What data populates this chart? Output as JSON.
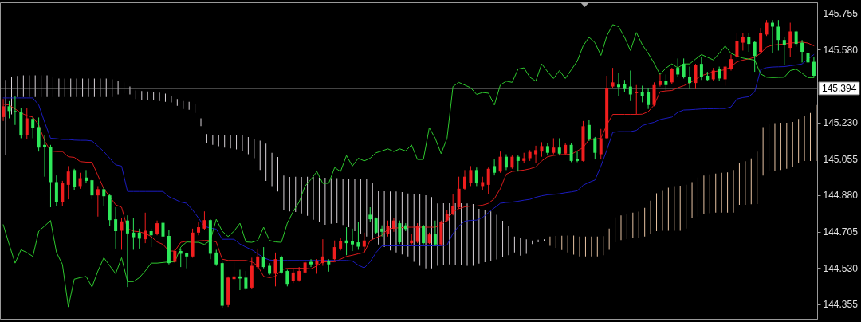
{
  "chart_data": {
    "type": "candlestick",
    "categories": [
      null,
      null,
      null,
      null,
      null,
      null,
      null,
      null,
      null,
      null,
      null,
      null,
      null,
      null,
      null,
      null,
      null,
      null,
      null,
      null,
      null,
      null,
      null,
      null,
      null,
      null,
      null,
      null,
      null,
      null,
      null,
      null,
      null,
      null,
      null,
      null,
      null,
      null,
      null,
      null,
      null,
      null,
      null,
      null,
      null,
      null,
      null,
      null,
      null,
      null,
      null,
      null,
      null,
      null,
      null,
      null,
      null,
      null,
      null,
      null,
      null,
      null,
      null,
      null,
      null,
      null,
      null,
      null,
      null,
      null,
      null,
      null,
      null,
      null,
      null,
      null,
      null,
      null,
      null,
      null,
      null,
      null,
      null,
      null,
      null,
      null,
      null,
      null,
      null,
      null,
      null,
      null,
      null,
      null,
      null,
      null,
      null,
      null,
      null,
      null,
      null,
      null,
      null,
      null,
      null,
      null,
      null,
      null,
      null,
      null,
      null,
      null,
      null,
      null,
      null,
      null,
      null,
      null,
      null,
      null,
      null,
      null,
      null,
      null,
      null,
      null,
      null,
      null,
      null,
      null,
      null,
      null,
      null,
      null,
      null,
      null,
      null,
      null
    ],
    "ohlc": [
      [
        145.256,
        145.343,
        145.237,
        145.308
      ],
      [
        145.308,
        145.333,
        145.25,
        145.285
      ],
      [
        145.285,
        145.359,
        145.218,
        145.279
      ],
      [
        145.282,
        145.301,
        145.154,
        145.167
      ],
      [
        145.167,
        145.301,
        145.148,
        145.25
      ],
      [
        145.247,
        145.256,
        145.154,
        145.205
      ],
      [
        145.208,
        145.254,
        145.09,
        145.109
      ],
      [
        145.122,
        145.167,
        144.969,
        145.113
      ],
      [
        145.113,
        145.122,
        144.822,
        144.943
      ],
      [
        144.943,
        144.975,
        144.828,
        144.847
      ],
      [
        144.847,
        144.949,
        144.828,
        144.937
      ],
      [
        144.93,
        145.02,
        144.86,
        144.994
      ],
      [
        145.001,
        145.007,
        144.905,
        144.918
      ],
      [
        144.924,
        144.988,
        144.911,
        144.962
      ],
      [
        144.965,
        145.001,
        144.937,
        144.949
      ],
      [
        144.952,
        144.956,
        144.86,
        144.879
      ],
      [
        144.879,
        144.924,
        144.777,
        144.909
      ],
      [
        144.909,
        144.918,
        144.828,
        144.875
      ],
      [
        144.879,
        144.886,
        144.732,
        144.76
      ],
      [
        144.764,
        144.822,
        144.623,
        144.707
      ],
      [
        144.709,
        144.77,
        144.617,
        144.754
      ],
      [
        144.758,
        144.783,
        144.438,
        144.696
      ],
      [
        144.7,
        144.77,
        144.617,
        144.678
      ],
      [
        144.7,
        144.719,
        144.623,
        144.671
      ],
      [
        144.668,
        144.796,
        144.649,
        144.709
      ],
      [
        144.707,
        144.719,
        144.63,
        144.687
      ],
      [
        144.694,
        144.758,
        144.687,
        144.745
      ],
      [
        144.747,
        144.758,
        144.668,
        144.681
      ],
      [
        144.684,
        144.713,
        144.547,
        144.553
      ],
      [
        144.559,
        144.623,
        144.553,
        144.611
      ],
      [
        144.611,
        144.623,
        144.534,
        144.598
      ],
      [
        144.6,
        144.604,
        144.528,
        144.585
      ],
      [
        144.585,
        144.719,
        144.579,
        144.7
      ],
      [
        144.7,
        144.751,
        144.687,
        144.726
      ],
      [
        144.719,
        144.802,
        144.713,
        144.76
      ],
      [
        144.76,
        144.764,
        144.572,
        144.598
      ],
      [
        144.604,
        144.617,
        144.54,
        144.547
      ],
      [
        144.553,
        144.559,
        144.336,
        144.348
      ],
      [
        144.351,
        144.489,
        144.342,
        144.483
      ],
      [
        144.476,
        144.559,
        144.464,
        144.489
      ],
      [
        144.489,
        144.521,
        144.423,
        144.479
      ],
      [
        144.483,
        144.515,
        144.423,
        144.432
      ],
      [
        144.435,
        144.579,
        144.428,
        144.54
      ],
      [
        144.534,
        144.623,
        144.528,
        144.585
      ],
      [
        144.581,
        144.63,
        144.528,
        144.534
      ],
      [
        144.54,
        144.553,
        144.496,
        144.502
      ],
      [
        144.502,
        144.604,
        144.441,
        144.572
      ],
      [
        144.581,
        144.589,
        144.502,
        144.508
      ],
      [
        144.515,
        144.521,
        144.441,
        144.453
      ],
      [
        144.466,
        144.525,
        144.457,
        144.508
      ],
      [
        144.47,
        144.534,
        144.464,
        144.515
      ],
      [
        144.508,
        144.563,
        144.502,
        144.556
      ],
      [
        144.559,
        144.572,
        144.534,
        144.547
      ],
      [
        144.547,
        144.572,
        144.502,
        144.562
      ],
      [
        144.553,
        144.668,
        144.54,
        144.585
      ],
      [
        144.563,
        144.572,
        144.512,
        144.547
      ],
      [
        144.572,
        144.662,
        144.566,
        144.63
      ],
      [
        144.623,
        144.675,
        144.614,
        144.658
      ],
      [
        144.662,
        144.726,
        144.591,
        144.649
      ],
      [
        144.658,
        144.719,
        144.611,
        144.643
      ],
      [
        144.653,
        144.751,
        144.617,
        144.632
      ],
      [
        144.632,
        144.7,
        144.604,
        144.662
      ],
      [
        144.786,
        144.822,
        144.751,
        144.764
      ],
      [
        144.768,
        144.773,
        144.694,
        144.7
      ],
      [
        144.719,
        144.735,
        144.681,
        144.704
      ],
      [
        144.694,
        144.758,
        144.681,
        144.732
      ],
      [
        144.719,
        144.77,
        144.704,
        144.758
      ],
      [
        144.745,
        144.758,
        144.645,
        144.653
      ],
      [
        144.735,
        144.745,
        144.707,
        144.717
      ],
      [
        144.649,
        144.694,
        144.643,
        144.662
      ],
      [
        144.655,
        144.745,
        144.649,
        144.732
      ],
      [
        144.732,
        144.738,
        144.643,
        144.649
      ],
      [
        144.649,
        144.7,
        144.645,
        144.691
      ],
      [
        144.694,
        144.758,
        144.636,
        144.643
      ],
      [
        144.643,
        144.758,
        144.636,
        144.751
      ],
      [
        144.758,
        144.809,
        144.751,
        144.79
      ],
      [
        144.79,
        144.886,
        144.783,
        144.828
      ],
      [
        144.822,
        144.969,
        144.815,
        144.911
      ],
      [
        144.911,
        145.001,
        144.905,
        144.969
      ],
      [
        144.937,
        145.02,
        144.924,
        145.001
      ],
      [
        145.001,
        145.013,
        144.924,
        144.937
      ],
      [
        144.924,
        144.969,
        144.905,
        144.943
      ],
      [
        144.93,
        145.013,
        144.886,
        145.007
      ],
      [
        145.02,
        145.052,
        144.975,
        144.988
      ],
      [
        144.994,
        145.09,
        144.988,
        145.065
      ],
      [
        145.065,
        145.077,
        145.001,
        145.013
      ],
      [
        145.013,
        145.071,
        145.007,
        145.065
      ],
      [
        145.065,
        145.071,
        144.994,
        145.045
      ],
      [
        145.045,
        145.084,
        145.033,
        145.058
      ],
      [
        145.058,
        145.097,
        145.045,
        145.088
      ],
      [
        145.077,
        145.118,
        145.033,
        145.097
      ],
      [
        145.09,
        145.135,
        145.065,
        145.116
      ],
      [
        145.116,
        145.129,
        145.071,
        145.084
      ],
      [
        145.084,
        145.154,
        145.077,
        145.109
      ],
      [
        145.109,
        145.154,
        145.071,
        145.08
      ],
      [
        145.08,
        145.129,
        145.075,
        145.122
      ],
      [
        145.122,
        145.129,
        145.039,
        145.045
      ],
      [
        145.054,
        145.09,
        145.039,
        145.045
      ],
      [
        145.045,
        145.237,
        145.042,
        145.212
      ],
      [
        145.218,
        145.244,
        145.141,
        145.148
      ],
      [
        145.154,
        145.16,
        145.052,
        145.084
      ],
      [
        145.077,
        145.199,
        145.052,
        145.154
      ],
      [
        145.154,
        145.455,
        145.148,
        145.397
      ],
      [
        145.403,
        145.493,
        145.397,
        145.423
      ],
      [
        145.412,
        145.467,
        145.359,
        145.4
      ],
      [
        145.416,
        145.435,
        145.378,
        145.391
      ],
      [
        145.403,
        145.48,
        145.333,
        145.365
      ],
      [
        145.371,
        145.41,
        145.269,
        145.378
      ],
      [
        145.378,
        145.407,
        145.327,
        145.356
      ],
      [
        145.378,
        145.394,
        145.295,
        145.314
      ],
      [
        145.314,
        145.423,
        145.308,
        145.41
      ],
      [
        145.41,
        145.461,
        145.403,
        145.429
      ],
      [
        145.429,
        145.461,
        145.384,
        145.41
      ],
      [
        145.423,
        145.493,
        145.416,
        145.487
      ],
      [
        145.493,
        145.538,
        145.448,
        145.461
      ],
      [
        145.512,
        145.538,
        145.442,
        145.448
      ],
      [
        145.451,
        145.499,
        145.391,
        145.42
      ],
      [
        145.42,
        145.512,
        145.391,
        145.506
      ],
      [
        145.512,
        145.544,
        145.435,
        145.448
      ],
      [
        145.455,
        145.474,
        145.429,
        145.435
      ],
      [
        145.438,
        145.493,
        145.429,
        145.48
      ],
      [
        145.489,
        145.499,
        145.429,
        145.442
      ],
      [
        145.438,
        145.506,
        145.407,
        145.499
      ],
      [
        145.489,
        145.557,
        145.48,
        145.535
      ],
      [
        145.544,
        145.659,
        145.535,
        145.621
      ],
      [
        145.614,
        145.659,
        145.576,
        145.64
      ],
      [
        145.643,
        145.659,
        145.57,
        145.608
      ],
      [
        145.617,
        145.621,
        145.474,
        145.55
      ],
      [
        145.57,
        145.685,
        145.563,
        145.659
      ],
      [
        145.653,
        145.723,
        145.646,
        145.71
      ],
      [
        145.71,
        145.723,
        145.563,
        145.691
      ],
      [
        145.691,
        145.723,
        145.576,
        145.627
      ],
      [
        145.627,
        145.64,
        145.506,
        145.602
      ],
      [
        145.589,
        145.71,
        145.544,
        145.668
      ],
      [
        145.668,
        145.672,
        145.595,
        145.608
      ],
      [
        145.614,
        145.627,
        145.519,
        145.57
      ],
      [
        145.563,
        145.621,
        145.512,
        145.519
      ],
      [
        145.522,
        145.544,
        145.448,
        145.455
      ]
    ],
    "colors": [
      "#f01e1e",
      "#2ee85a",
      "#2ee85a",
      "#2ee85a",
      "#f01e1e",
      "#2ee85a",
      "#2ee85a",
      "#2ee85a",
      "#2ee85a",
      "#2ee85a",
      "#f01e1e",
      "#f01e1e",
      "#2ee85a",
      "#f01e1e",
      "#2ee85a",
      "#2ee85a",
      "#f01e1e",
      "#2ee85a",
      "#2ee85a",
      "#2ee85a",
      "#f01e1e",
      "#2ee85a",
      "#2ee85a",
      "#2ee85a",
      "#f01e1e",
      "#2ee85a",
      "#f01e1e",
      "#2ee85a",
      "#2ee85a",
      "#f01e1e",
      "#2ee85a",
      "#2ee85a",
      "#f01e1e",
      "#f01e1e",
      "#f01e1e",
      "#2ee85a",
      "#2ee85a",
      "#2ee85a",
      "#f01e1e",
      "#f01e1e",
      "#2ee85a",
      "#2ee85a",
      "#f01e1e",
      "#f01e1e",
      "#2ee85a",
      "#2ee85a",
      "#f01e1e",
      "#2ee85a",
      "#2ee85a",
      "#f01e1e",
      "#f01e1e",
      "#f01e1e",
      "#2ee85a",
      "#f01e1e",
      "#f01e1e",
      "#2ee85a",
      "#f01e1e",
      "#f01e1e",
      "#2ee85a",
      "#2ee85a",
      "#2ee85a",
      "#f01e1e",
      "#2ee85a",
      "#2ee85a",
      "#2ee85a",
      "#f01e1e",
      "#f01e1e",
      "#2ee85a",
      "#2ee85a",
      "#f01e1e",
      "#f01e1e",
      "#2ee85a",
      "#f01e1e",
      "#2ee85a",
      "#f01e1e",
      "#f01e1e",
      "#f01e1e",
      "#f01e1e",
      "#f01e1e",
      "#f01e1e",
      "#2ee85a",
      "#f01e1e",
      "#f01e1e",
      "#2ee85a",
      "#f01e1e",
      "#2ee85a",
      "#f01e1e",
      "#2ee85a",
      "#f01e1e",
      "#f01e1e",
      "#f01e1e",
      "#f01e1e",
      "#2ee85a",
      "#f01e1e",
      "#2ee85a",
      "#f01e1e",
      "#2ee85a",
      "#2ee85a",
      "#f01e1e",
      "#2ee85a",
      "#2ee85a",
      "#f01e1e",
      "#f01e1e",
      "#f01e1e",
      "#2ee85a",
      "#2ee85a",
      "#2ee85a",
      "#f01e1e",
      "#2ee85a",
      "#2ee85a",
      "#f01e1e",
      "#f01e1e",
      "#2ee85a",
      "#f01e1e",
      "#2ee85a",
      "#2ee85a",
      "#2ee85a",
      "#f01e1e",
      "#2ee85a",
      "#2ee85a",
      "#f01e1e",
      "#2ee85a",
      "#f01e1e",
      "#f01e1e",
      "#f01e1e",
      "#f01e1e",
      "#2ee85a",
      "#2ee85a",
      "#f01e1e",
      "#f01e1e",
      "#2ee85a",
      "#2ee85a",
      "#2ee85a",
      "#f01e1e",
      "#2ee85a",
      "#2ee85a",
      "#2ee85a",
      "#2ee85a"
    ],
    "ylim": [
      144.285,
      145.808
    ],
    "yticks": [
      144.355,
      {
        "value": 144.53,
        "label": "144.530"
      },
      144.705,
      {
        "value": 144.88,
        "label": "144.880"
      },
      145.055,
      {
        "value": 145.23,
        "label": "145.230"
      },
      {
        "value": 145.58,
        "label": "145.580"
      },
      145.755
    ],
    "tick_labels": "y",
    "ref_lines": [
      {
        "axis": "y",
        "value": 145.394,
        "label": "145.394",
        "color": "#a8a8a8"
      }
    ],
    "series": [
      {
        "type": "bar",
        "color": "#d8d2d8",
        "base": [
          145.071,
          145.269,
          145.352,
          145.352,
          145.352,
          145.352,
          145.352,
          145.352,
          145.352,
          145.352,
          145.352,
          145.352,
          145.352,
          145.352,
          145.352,
          145.352,
          145.352,
          145.352,
          145.352,
          145.365,
          145.371,
          145.365,
          145.343,
          145.339,
          145.339,
          145.336,
          145.333,
          145.329,
          145.327,
          145.31,
          145.295,
          145.291,
          145.276,
          145.212,
          145.129,
          145.122,
          145.116,
          145.109,
          145.105,
          145.1,
          145.094,
          145.077,
          145.058,
          145.001,
          144.949,
          144.924,
          144.898,
          144.809,
          144.802,
          144.799,
          144.792,
          144.781,
          144.762,
          144.75,
          144.738,
          144.742,
          144.745,
          144.737,
          144.726,
          144.707,
          144.694,
          144.681,
          144.668,
          144.643,
          144.63,
          144.614,
          144.604,
          144.595,
          144.585,
          144.559,
          144.54,
          144.528,
          144.528,
          144.54,
          144.544,
          144.547,
          144.544,
          144.543,
          144.54,
          144.54,
          144.551,
          144.557,
          144.562,
          144.571,
          144.581,
          144.591,
          144.604,
          144.589,
          144.598,
          144.645,
          144.653,
          144.66,
          null,
          null,
          null,
          null,
          null,
          null,
          null,
          null,
          null,
          null,
          null,
          null,
          null,
          null,
          null,
          null,
          null,
          null,
          null,
          null,
          null,
          null,
          null,
          null,
          null,
          null,
          null,
          null,
          null,
          null,
          null,
          null,
          null,
          null,
          null,
          null,
          null,
          null,
          null,
          null,
          null,
          null,
          null,
          null,
          null,
          null
        ],
        "values": [
          0.364,
          0.179,
          0.102,
          0.105,
          0.105,
          0.105,
          0.105,
          0.105,
          0.096,
          0.09,
          0.09,
          0.09,
          0.09,
          0.09,
          0.09,
          0.09,
          0.09,
          0.09,
          0.086,
          0.064,
          0.051,
          0.038,
          0.041,
          0.042,
          0.04,
          0.041,
          0.041,
          0.04,
          0.029,
          0.033,
          0.038,
          0.038,
          0.042,
          0.038,
          0.045,
          0.047,
          0.054,
          0.06,
          0.064,
          0.069,
          0.073,
          0.083,
          0.092,
          0.141,
          0.179,
          0.16,
          0.166,
          0.166,
          0.166,
          0.17,
          0.176,
          0.188,
          0.207,
          0.215,
          0.226,
          0.22,
          0.217,
          0.222,
          0.23,
          0.249,
          0.262,
          0.275,
          0.269,
          0.256,
          0.269,
          0.284,
          0.294,
          0.3,
          0.303,
          0.326,
          0.345,
          0.352,
          0.343,
          0.3,
          0.297,
          0.294,
          0.297,
          0.298,
          0.3,
          0.297,
          0.263,
          0.253,
          0.24,
          0.215,
          0.176,
          0.141,
          0.077,
          0.086,
          0.07,
          0.017,
          0.013,
          0.008,
          null,
          null,
          null,
          null,
          null,
          null,
          null,
          null,
          null,
          null,
          null,
          null,
          null,
          null,
          null,
          null,
          null,
          null,
          null,
          null,
          null,
          null,
          null,
          null,
          null,
          null,
          null,
          null,
          null,
          null,
          null,
          null,
          null,
          null,
          null,
          null,
          null,
          null,
          null,
          null,
          null,
          null,
          null,
          null,
          null,
          null
        ]
      },
      {
        "type": "bar",
        "color": "#e8c4a4",
        "base": [
          null,
          null,
          null,
          null,
          null,
          null,
          null,
          null,
          null,
          null,
          null,
          null,
          null,
          null,
          null,
          null,
          null,
          null,
          null,
          null,
          null,
          null,
          null,
          null,
          null,
          null,
          null,
          null,
          null,
          null,
          null,
          null,
          null,
          null,
          null,
          null,
          null,
          null,
          null,
          null,
          null,
          null,
          null,
          null,
          null,
          null,
          null,
          null,
          null,
          null,
          null,
          null,
          null,
          null,
          null,
          null,
          null,
          null,
          null,
          null,
          null,
          null,
          null,
          null,
          null,
          null,
          null,
          null,
          null,
          null,
          null,
          null,
          null,
          null,
          null,
          null,
          null,
          null,
          null,
          null,
          null,
          null,
          null,
          null,
          null,
          null,
          null,
          null,
          null,
          null,
          null,
          null,
          144.636,
          144.626,
          144.616,
          144.604,
          144.594,
          144.585,
          144.585,
          144.585,
          144.585,
          144.591,
          144.617,
          144.653,
          144.664,
          144.669,
          144.673,
          144.676,
          144.681,
          144.694,
          144.707,
          144.709,
          144.709,
          144.709,
          144.709,
          144.719,
          144.77,
          144.777,
          144.79,
          144.793,
          144.796,
          144.796,
          144.796,
          144.796,
          144.834,
          144.834,
          144.836,
          144.837,
          144.975,
          144.997,
          144.999,
          145.001,
          145.007,
          145.016,
          145.035,
          145.045,
          145.045,
          145.045
        ],
        "values": [
          null,
          null,
          null,
          null,
          null,
          null,
          null,
          null,
          null,
          null,
          null,
          null,
          null,
          null,
          null,
          null,
          null,
          null,
          null,
          null,
          null,
          null,
          null,
          null,
          null,
          null,
          null,
          null,
          null,
          null,
          null,
          null,
          null,
          null,
          null,
          null,
          null,
          null,
          null,
          null,
          null,
          null,
          null,
          null,
          null,
          null,
          null,
          null,
          null,
          null,
          null,
          null,
          null,
          null,
          null,
          null,
          null,
          null,
          null,
          null,
          null,
          null,
          null,
          null,
          null,
          null,
          null,
          null,
          null,
          null,
          null,
          null,
          null,
          null,
          null,
          null,
          null,
          null,
          null,
          null,
          null,
          null,
          null,
          null,
          null,
          null,
          null,
          null,
          null,
          null,
          null,
          null,
          0.045,
          0.058,
          0.069,
          0.082,
          0.092,
          0.096,
          0.096,
          0.096,
          0.096,
          0.092,
          0.102,
          0.12,
          0.119,
          0.121,
          0.123,
          0.125,
          0.138,
          0.16,
          0.182,
          0.192,
          0.207,
          0.215,
          0.217,
          0.211,
          0.173,
          0.188,
          0.185,
          0.187,
          0.188,
          0.192,
          0.194,
          0.205,
          0.201,
          0.21,
          0.221,
          0.253,
          0.233,
          0.228,
          0.228,
          0.228,
          0.222,
          0.217,
          0.212,
          0.217,
          0.231,
          0.269
        ]
      },
      {
        "type": "line",
        "color": "#d81c1c",
        "values": [
          145.318,
          145.314,
          145.295,
          145.276,
          145.263,
          145.256,
          145.218,
          145.141,
          145.093,
          145.09,
          145.09,
          145.065,
          145.062,
          145.042,
          145.039,
          145.039,
          144.975,
          144.911,
          144.873,
          144.834,
          144.822,
          144.719,
          144.707,
          144.704,
          144.696,
          144.681,
          144.655,
          144.643,
          144.611,
          144.611,
          144.653,
          144.658,
          144.658,
          144.66,
          144.662,
          144.662,
          144.655,
          144.572,
          144.566,
          144.566,
          144.566,
          144.566,
          144.559,
          144.54,
          144.489,
          144.483,
          144.489,
          144.521,
          144.528,
          144.528,
          144.528,
          144.528,
          144.525,
          144.54,
          144.559,
          144.559,
          144.559,
          144.572,
          144.585,
          144.591,
          144.598,
          144.604,
          144.662,
          144.675,
          144.687,
          144.717,
          144.722,
          144.723,
          144.726,
          144.726,
          144.726,
          144.726,
          144.726,
          144.726,
          144.735,
          144.764,
          144.799,
          144.815,
          144.824,
          144.828,
          144.828,
          144.832,
          144.841,
          144.863,
          144.911,
          144.981,
          144.994,
          144.998,
          145.001,
          145.007,
          145.016,
          145.045,
          145.065,
          145.071,
          145.075,
          145.076,
          145.077,
          145.093,
          145.109,
          145.148,
          145.149,
          145.154,
          145.218,
          145.269,
          145.269,
          145.269,
          145.269,
          145.269,
          145.27,
          145.282,
          145.314,
          145.378,
          145.382,
          145.384,
          145.397,
          145.407,
          145.42,
          145.438,
          145.455,
          145.465,
          145.474,
          145.479,
          145.484,
          145.499,
          145.522,
          145.53,
          145.536,
          145.544,
          145.563,
          145.593,
          145.602,
          145.605,
          145.608,
          145.612,
          145.614,
          145.617,
          145.612,
          145.599
        ]
      },
      {
        "type": "line",
        "color": "#1c1cc0",
        "values": [
          145.348,
          145.348,
          145.348,
          145.348,
          145.348,
          145.348,
          145.314,
          145.231,
          145.154,
          145.152,
          145.148,
          145.148,
          145.145,
          145.144,
          145.144,
          145.141,
          145.116,
          145.09,
          145.058,
          145.026,
          145.02,
          144.898,
          144.898,
          144.898,
          144.898,
          144.898,
          144.898,
          144.898,
          144.873,
          144.86,
          144.847,
          144.841,
          144.809,
          144.77,
          144.73,
          144.722,
          144.717,
          144.668,
          144.668,
          144.668,
          144.645,
          144.63,
          144.617,
          144.598,
          144.579,
          144.568,
          144.566,
          144.566,
          144.566,
          144.566,
          144.566,
          144.566,
          144.566,
          144.566,
          144.566,
          144.566,
          144.566,
          144.566,
          144.566,
          144.563,
          144.543,
          144.53,
          144.559,
          144.604,
          144.636,
          144.636,
          144.636,
          144.636,
          144.636,
          144.636,
          144.636,
          144.636,
          144.636,
          144.636,
          144.636,
          144.64,
          144.696,
          144.732,
          144.755,
          144.759,
          144.76,
          144.773,
          144.796,
          144.819,
          144.841,
          144.845,
          144.847,
          144.851,
          144.856,
          144.86,
          144.87,
          144.877,
          144.882,
          144.884,
          144.887,
          144.892,
          144.896,
          144.901,
          144.928,
          144.942,
          144.953,
          145.02,
          145.097,
          145.182,
          145.186,
          145.186,
          145.186,
          145.192,
          145.215,
          145.224,
          145.231,
          145.244,
          145.25,
          145.256,
          145.279,
          145.29,
          145.291,
          145.293,
          145.295,
          145.296,
          145.296,
          145.297,
          145.297,
          145.305,
          145.343,
          145.35,
          145.354,
          145.378,
          145.484,
          145.494,
          145.497,
          145.498,
          145.499,
          145.503,
          145.507,
          145.512,
          145.535,
          145.557
        ]
      },
      {
        "type": "line",
        "color": "#2ec82e",
        "values": [
          144.738,
          144.643,
          144.553,
          144.617,
          144.604,
          144.585,
          144.707,
          144.732,
          144.758,
          144.604,
          144.547,
          144.342,
          144.476,
          144.483,
          144.489,
          144.438,
          144.515,
          144.579,
          144.54,
          144.502,
          144.579,
          144.464,
          144.464,
          144.483,
          144.515,
          144.553,
          144.553,
          144.556,
          144.559,
          144.559,
          144.63,
          144.655,
          144.653,
          144.653,
          144.643,
          144.662,
          144.764,
          144.707,
          144.681,
          144.707,
          144.745,
          144.655,
          144.653,
          144.662,
          144.726,
          144.662,
          144.655,
          144.653,
          144.745,
          144.802,
          144.847,
          144.924,
          144.956,
          144.994,
          144.937,
          144.937,
          145.013,
          144.994,
          145.071,
          145.02,
          145.058,
          145.045,
          145.058,
          145.084,
          145.093,
          145.103,
          145.09,
          145.103,
          145.093,
          145.122,
          145.052,
          145.052,
          145.205,
          145.154,
          145.08,
          145.154,
          145.403,
          145.423,
          145.41,
          145.397,
          145.365,
          145.374,
          145.371,
          145.314,
          145.41,
          145.429,
          145.423,
          145.487,
          145.493,
          145.448,
          145.429,
          145.512,
          145.474,
          145.442,
          145.48,
          145.442,
          145.484,
          145.525,
          145.599,
          145.64,
          145.614,
          145.553,
          145.646,
          145.701,
          145.691,
          145.64,
          145.576,
          145.663,
          145.604,
          145.563,
          145.515,
          145.461,
          145.492,
          145.512,
          145.493,
          145.512,
          145.512,
          145.535,
          145.557,
          145.544,
          145.531,
          145.563,
          145.598,
          145.563,
          145.55,
          145.54,
          145.535,
          145.53,
          145.464,
          145.448,
          145.446,
          145.447,
          145.448,
          145.48,
          145.487,
          145.467,
          145.446,
          145.446
        ]
      }
    ]
  }
}
